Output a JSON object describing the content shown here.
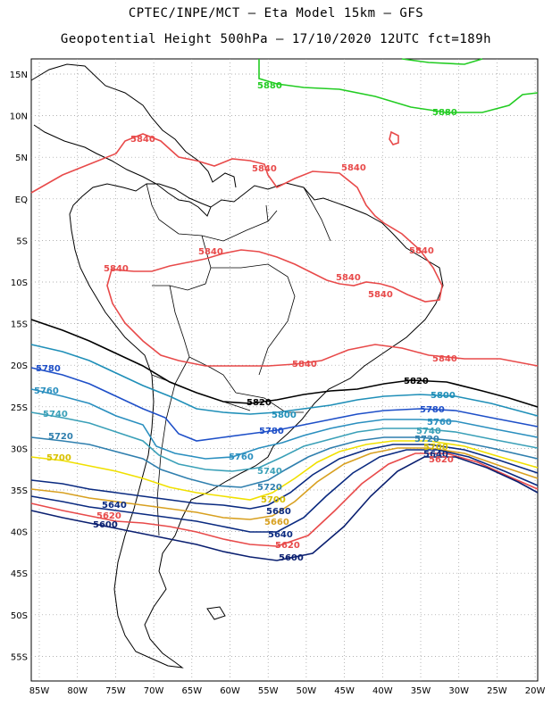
{
  "header": {
    "line1": "CPTEC/INPE/MCT –  Eta Model 15km – GFS",
    "line2": "Geopotential Height 500hPa – 17/10/2020 12UTC fct=189h"
  },
  "axes": {
    "lat_labels": [
      "15N",
      "10N",
      "5N",
      "EQ",
      "5S",
      "10S",
      "15S",
      "20S",
      "25S",
      "30S",
      "35S",
      "40S",
      "45S",
      "50S",
      "55S"
    ],
    "lon_labels": [
      "85W",
      "80W",
      "75W",
      "70W",
      "65W",
      "60W",
      "55W",
      "50W",
      "45W",
      "40W",
      "35W",
      "30W",
      "25W",
      "20W"
    ]
  },
  "contours": [
    {
      "level": "5880",
      "color": "#22cc22",
      "labels": [
        "5880",
        "5880"
      ]
    },
    {
      "level": "5840",
      "color": "#e84a4a",
      "labels": [
        "5840",
        "5840",
        "5840",
        "5840",
        "5840",
        "5840",
        "5840",
        "5840",
        "5840"
      ]
    },
    {
      "level": "5820",
      "color": "#000000",
      "labels": [
        "5820",
        "5820"
      ]
    },
    {
      "level": "5800",
      "color": "#1f8fb8",
      "labels": [
        "5800",
        "5800"
      ]
    },
    {
      "level": "5780",
      "color": "#1e4fc8",
      "labels": [
        "5780",
        "5780",
        "5780"
      ]
    },
    {
      "level": "5760",
      "color": "#2a8fbf",
      "labels": [
        "5760",
        "5760",
        "5760"
      ]
    },
    {
      "level": "5740",
      "color": "#3aa0b8",
      "labels": [
        "5740",
        "5740",
        "5740"
      ]
    },
    {
      "level": "5720",
      "color": "#2f7fae",
      "labels": [
        "5720",
        "5720",
        "5720"
      ]
    },
    {
      "level": "5700",
      "color": "#f0e000",
      "labels": [
        "5700",
        "5700",
        "5700"
      ]
    },
    {
      "level": "5680",
      "color": "#d8a020",
      "labels": [
        "5680"
      ]
    },
    {
      "level": "5660",
      "color": "#d8a020",
      "labels": [
        "5660"
      ]
    },
    {
      "level": "5640",
      "color": "#0a2a80",
      "labels": [
        "5640",
        "5640",
        "5640"
      ]
    },
    {
      "level": "5620",
      "color": "#e84a4a",
      "labels": [
        "5620",
        "5620",
        "5620"
      ]
    },
    {
      "level": "5600",
      "color": "#0a1f70",
      "labels": [
        "5600",
        "5600"
      ]
    }
  ],
  "colors": {
    "coast": "#000000",
    "grid": "#999999",
    "frame": "#000000"
  }
}
